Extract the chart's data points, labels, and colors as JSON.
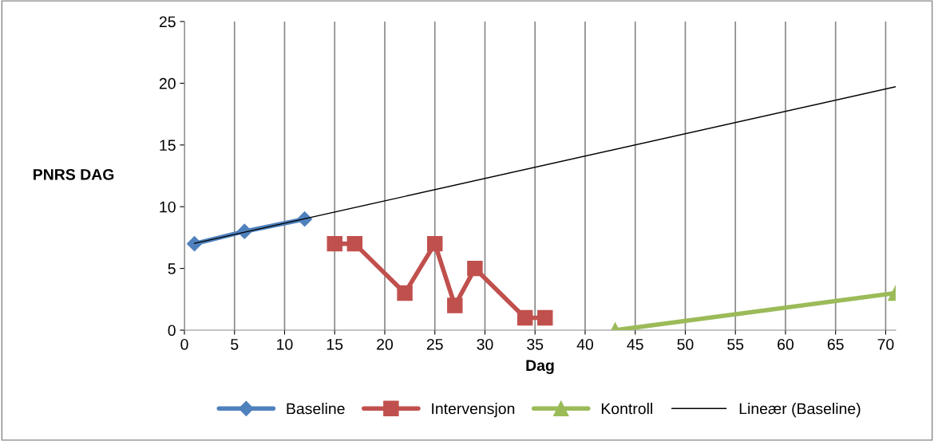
{
  "chart_data": {
    "type": "line",
    "xlabel": "Dag",
    "ylabel": "PNRS DAG",
    "xlim": [
      0,
      71
    ],
    "xticks": [
      0,
      5,
      10,
      15,
      20,
      25,
      30,
      35,
      40,
      45,
      50,
      55,
      60,
      65,
      70
    ],
    "ylim": [
      0,
      25
    ],
    "yticks": [
      0,
      5,
      10,
      15,
      20,
      25
    ],
    "grid": "x",
    "legend": "bottom",
    "line_style": "solid",
    "series": [
      {
        "name": "Baseline",
        "color": "#4f81bd",
        "marker": "diamond",
        "x": [
          1,
          6,
          12
        ],
        "values": [
          7,
          8,
          9
        ]
      },
      {
        "name": "Intervensjon",
        "color": "#c0504d",
        "marker": "square",
        "x": [
          15,
          17,
          22,
          25,
          27,
          29,
          34,
          36
        ],
        "values": [
          7,
          7,
          3,
          7,
          2,
          5,
          1,
          1
        ]
      },
      {
        "name": "Kontroll",
        "color": "#9bbb59",
        "marker": "triangle",
        "x": [
          43,
          71
        ],
        "values": [
          0,
          3
        ]
      },
      {
        "name": "Lineær (Baseline)",
        "color": "#000000",
        "marker": "none",
        "x": [
          1,
          71
        ],
        "values": [
          7.03,
          19.72
        ]
      }
    ]
  }
}
